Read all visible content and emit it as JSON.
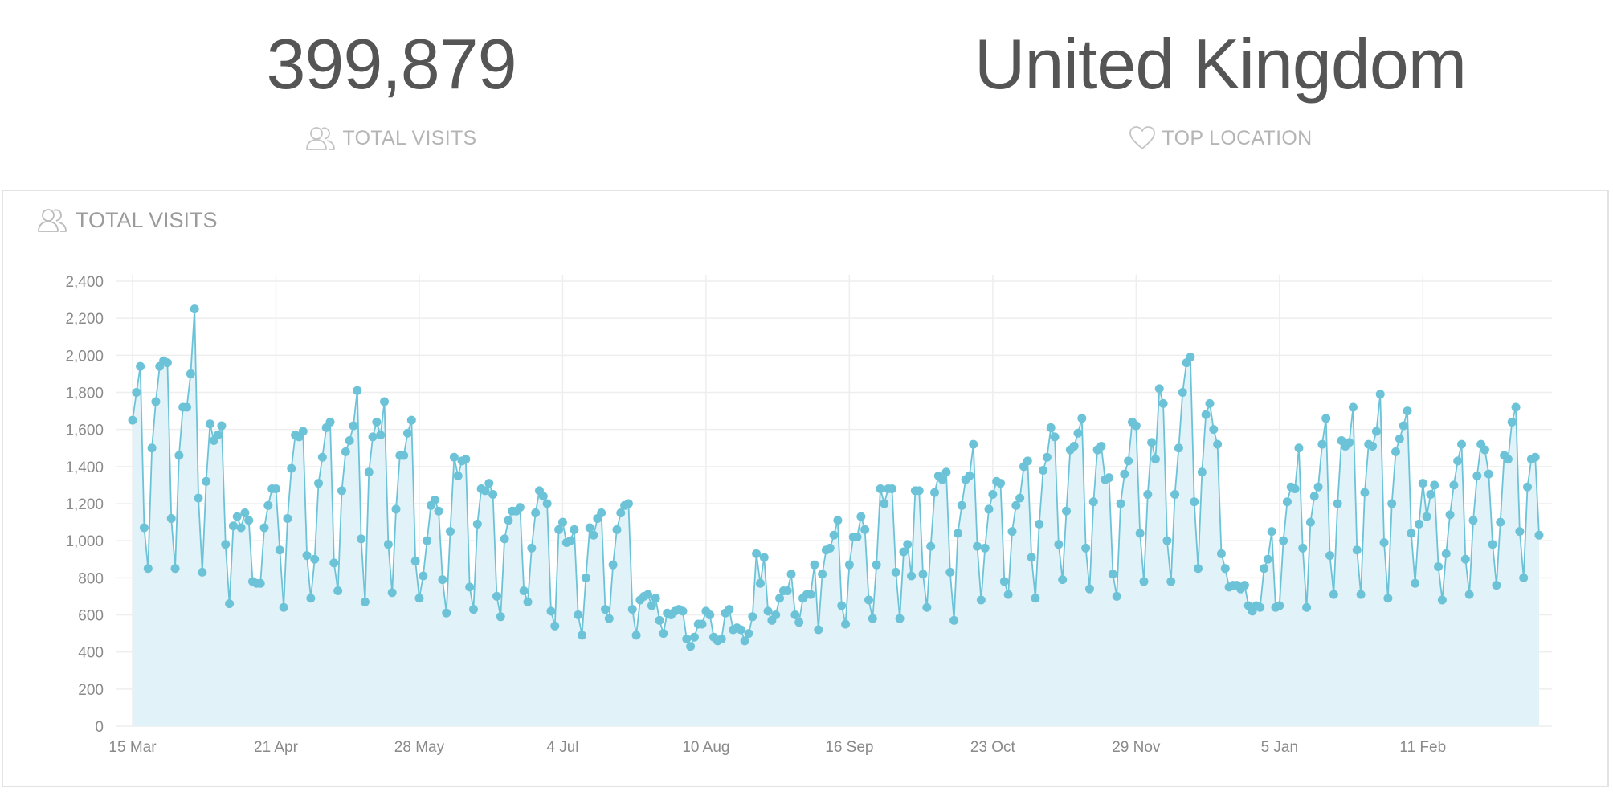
{
  "stats": {
    "visits": {
      "value": "399,879",
      "label": "TOTAL VISITS",
      "icon": "users-icon"
    },
    "location": {
      "value": "United Kingdom",
      "label": "TOP LOCATION",
      "icon": "heart-icon"
    }
  },
  "panel": {
    "title": "TOTAL VISITS",
    "icon": "users-icon"
  },
  "colors": {
    "line": "#6cc3d8",
    "area": "#e1f3f8",
    "grid": "#eeeeee",
    "text": "#555555",
    "muted": "#b5b5b5"
  },
  "chart_data": {
    "type": "area",
    "title": "TOTAL VISITS",
    "xlabel": "",
    "ylabel": "",
    "ylim": [
      0,
      2400
    ],
    "yticks": [
      0,
      200,
      400,
      600,
      800,
      1000,
      1200,
      1400,
      1600,
      1800,
      2000,
      2200,
      2400
    ],
    "ytick_labels": [
      "0",
      "200",
      "400",
      "600",
      "800",
      "1,000",
      "1,200",
      "1,400",
      "1,600",
      "1,800",
      "2,000",
      "2,200",
      "2,400"
    ],
    "xticks": [
      {
        "label": "15 Mar",
        "index": 0
      },
      {
        "label": "21 Apr",
        "index": 37
      },
      {
        "label": "28 May",
        "index": 74
      },
      {
        "label": "4 Jul",
        "index": 111
      },
      {
        "label": "10 Aug",
        "index": 148
      },
      {
        "label": "16 Sep",
        "index": 185
      },
      {
        "label": "23 Oct",
        "index": 222
      },
      {
        "label": "29 Nov",
        "index": 259
      },
      {
        "label": "5 Jan",
        "index": 296
      },
      {
        "label": "11 Feb",
        "index": 333
      }
    ],
    "grid": true,
    "legend": "none",
    "series": [
      {
        "values": [
          1650,
          1800,
          1940,
          1070,
          850,
          1500,
          1750,
          1940,
          1970,
          1960,
          1120,
          850,
          1460,
          1720,
          1720,
          1900,
          2250,
          1230,
          830,
          1320,
          1630,
          1540,
          1570,
          1620,
          980,
          660,
          1080,
          1130,
          1070,
          1150,
          1110,
          780,
          770,
          770,
          1070,
          1190,
          1280,
          1280,
          950,
          640,
          1120,
          1390,
          1570,
          1560,
          1590,
          920,
          690,
          900,
          1310,
          1450,
          1610,
          1640,
          880,
          730,
          1270,
          1480,
          1540,
          1620,
          1810,
          1010,
          670,
          1370,
          1560,
          1640,
          1570,
          1750,
          980,
          720,
          1170,
          1460,
          1460,
          1580,
          1650,
          890,
          690,
          810,
          1000,
          1190,
          1220,
          1160,
          790,
          610,
          1050,
          1450,
          1350,
          1430,
          1440,
          750,
          630,
          1090,
          1280,
          1270,
          1310,
          1250,
          700,
          590,
          1010,
          1110,
          1160,
          1160,
          1180,
          730,
          670,
          960,
          1150,
          1270,
          1240,
          1200,
          620,
          540,
          1060,
          1100,
          990,
          1000,
          1060,
          600,
          490,
          800,
          1070,
          1030,
          1120,
          1150,
          630,
          580,
          870,
          1060,
          1150,
          1190,
          1200,
          630,
          490,
          680,
          700,
          710,
          650,
          690,
          570,
          500,
          610,
          600,
          620,
          630,
          620,
          470,
          430,
          480,
          550,
          550,
          620,
          600,
          480,
          460,
          470,
          610,
          630,
          520,
          530,
          520,
          460,
          500,
          590,
          930,
          770,
          910,
          620,
          570,
          600,
          690,
          730,
          730,
          820,
          600,
          560,
          690,
          710,
          710,
          870,
          520,
          820,
          950,
          960,
          1030,
          1110,
          650,
          550,
          870,
          1020,
          1020,
          1130,
          1060,
          680,
          580,
          870,
          1280,
          1200,
          1280,
          1280,
          830,
          580,
          940,
          980,
          810,
          1270,
          1270,
          820,
          640,
          970,
          1260,
          1350,
          1330,
          1370,
          830,
          570,
          1040,
          1190,
          1330,
          1350,
          1520,
          970,
          680,
          960,
          1170,
          1250,
          1320,
          1310,
          780,
          710,
          1050,
          1190,
          1230,
          1400,
          1430,
          910,
          690,
          1090,
          1380,
          1450,
          1610,
          1560,
          980,
          790,
          1160,
          1490,
          1510,
          1580,
          1660,
          960,
          740,
          1210,
          1490,
          1510,
          1330,
          1340,
          820,
          700,
          1200,
          1360,
          1430,
          1640,
          1620,
          1040,
          780,
          1250,
          1530,
          1440,
          1820,
          1740,
          1000,
          780,
          1250,
          1500,
          1800,
          1960,
          1990,
          1210,
          850,
          1370,
          1680,
          1740,
          1600,
          1520,
          930,
          850,
          750,
          760,
          760,
          740,
          760,
          650,
          620,
          650,
          640,
          850,
          900,
          1050,
          640,
          650,
          1000,
          1210,
          1290,
          1280,
          1500,
          960,
          640,
          1100,
          1240,
          1290,
          1520,
          1660,
          920,
          710,
          1200,
          1540,
          1510,
          1530,
          1720,
          950,
          710,
          1260,
          1520,
          1510,
          1590,
          1790,
          990,
          690,
          1200,
          1480,
          1550,
          1620,
          1700,
          1040,
          770,
          1090,
          1310,
          1130,
          1250,
          1300,
          860,
          680,
          930,
          1140,
          1300,
          1430,
          1520,
          900,
          710,
          1110,
          1350,
          1520,
          1490,
          1360,
          980,
          760,
          1100,
          1460,
          1440,
          1640,
          1720,
          1050,
          800,
          1290,
          1440,
          1450,
          1030
        ]
      }
    ]
  }
}
